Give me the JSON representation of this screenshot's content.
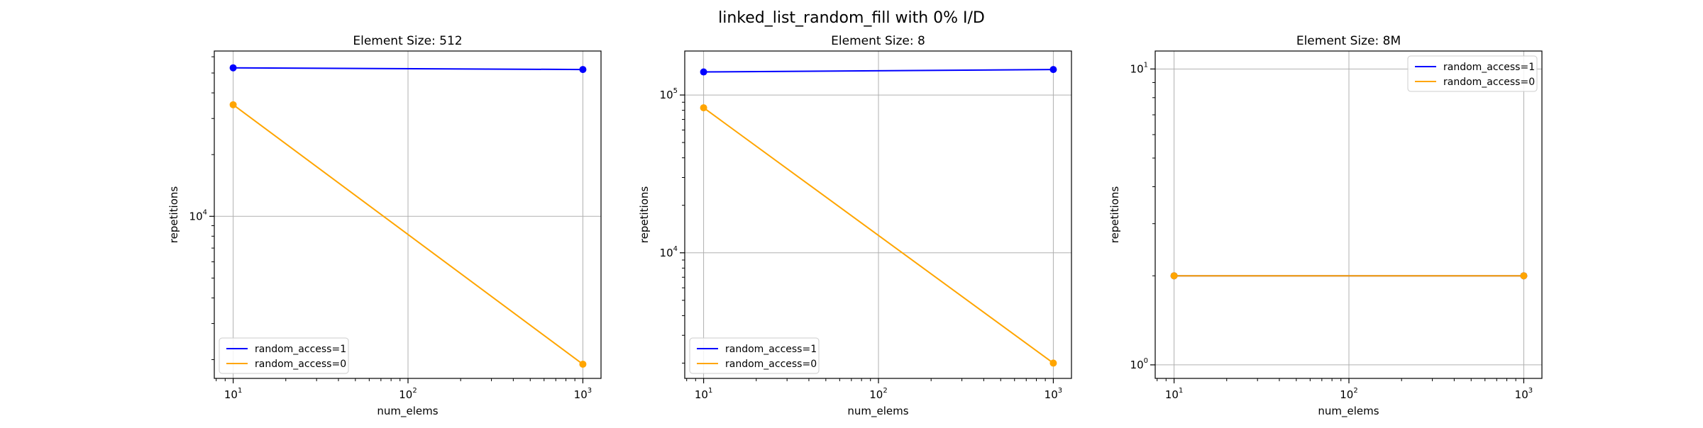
{
  "suptitle": "linked_list_random_fill with 0% I/D",
  "chart_data": [
    {
      "type": "line",
      "title": "Element Size: 512",
      "xlabel": "num_elems",
      "ylabel": "repetitions",
      "xscale": "log",
      "yscale": "log",
      "xlim": [
        7.8,
        1270
      ],
      "ylim": [
        1620,
        64000
      ],
      "xticks": [
        {
          "value": 10,
          "base": "10",
          "exp": "1"
        },
        {
          "value": 100,
          "base": "10",
          "exp": "2"
        },
        {
          "value": 1000,
          "base": "10",
          "exp": "3"
        }
      ],
      "yticks": [
        {
          "value": 10000,
          "base": "10",
          "exp": "4"
        }
      ],
      "grid": true,
      "legend_position": "lower-left",
      "series": [
        {
          "name": "random_access=1",
          "color": "#0000ff",
          "x": [
            10,
            1000
          ],
          "y": [
            53000,
            52000
          ]
        },
        {
          "name": "random_access=0",
          "color": "#ffa500",
          "x": [
            10,
            1000
          ],
          "y": [
            35000,
            1900
          ]
        }
      ]
    },
    {
      "type": "line",
      "title": "Element Size: 8",
      "xlabel": "num_elems",
      "ylabel": "repetitions",
      "xscale": "log",
      "yscale": "log",
      "xlim": [
        7.8,
        1270
      ],
      "ylim": [
        1600,
        190000
      ],
      "xticks": [
        {
          "value": 10,
          "base": "10",
          "exp": "1"
        },
        {
          "value": 100,
          "base": "10",
          "exp": "2"
        },
        {
          "value": 1000,
          "base": "10",
          "exp": "3"
        }
      ],
      "yticks": [
        {
          "value": 10000,
          "base": "10",
          "exp": "4"
        },
        {
          "value": 100000,
          "base": "10",
          "exp": "5"
        }
      ],
      "grid": true,
      "legend_position": "lower-left",
      "series": [
        {
          "name": "random_access=1",
          "color": "#0000ff",
          "x": [
            10,
            1000
          ],
          "y": [
            140000,
            145000
          ]
        },
        {
          "name": "random_access=0",
          "color": "#ffa500",
          "x": [
            10,
            1000
          ],
          "y": [
            83000,
            2000
          ]
        }
      ]
    },
    {
      "type": "line",
      "title": "Element Size: 8M",
      "xlabel": "num_elems",
      "ylabel": "repetitions",
      "xscale": "log",
      "yscale": "log",
      "xlim": [
        7.8,
        1270
      ],
      "ylim": [
        0.9,
        11.5
      ],
      "xticks": [
        {
          "value": 10,
          "base": "10",
          "exp": "1"
        },
        {
          "value": 100,
          "base": "10",
          "exp": "2"
        },
        {
          "value": 1000,
          "base": "10",
          "exp": "3"
        }
      ],
      "yticks": [
        {
          "value": 1,
          "base": "10",
          "exp": "0"
        },
        {
          "value": 10,
          "base": "10",
          "exp": "1"
        }
      ],
      "grid": true,
      "legend_position": "upper-right",
      "series": [
        {
          "name": "random_access=1",
          "color": "#0000ff",
          "x": [
            10,
            1000
          ],
          "y": [
            2,
            2
          ]
        },
        {
          "name": "random_access=0",
          "color": "#ffa500",
          "x": [
            10,
            1000
          ],
          "y": [
            2,
            2
          ]
        }
      ]
    }
  ]
}
